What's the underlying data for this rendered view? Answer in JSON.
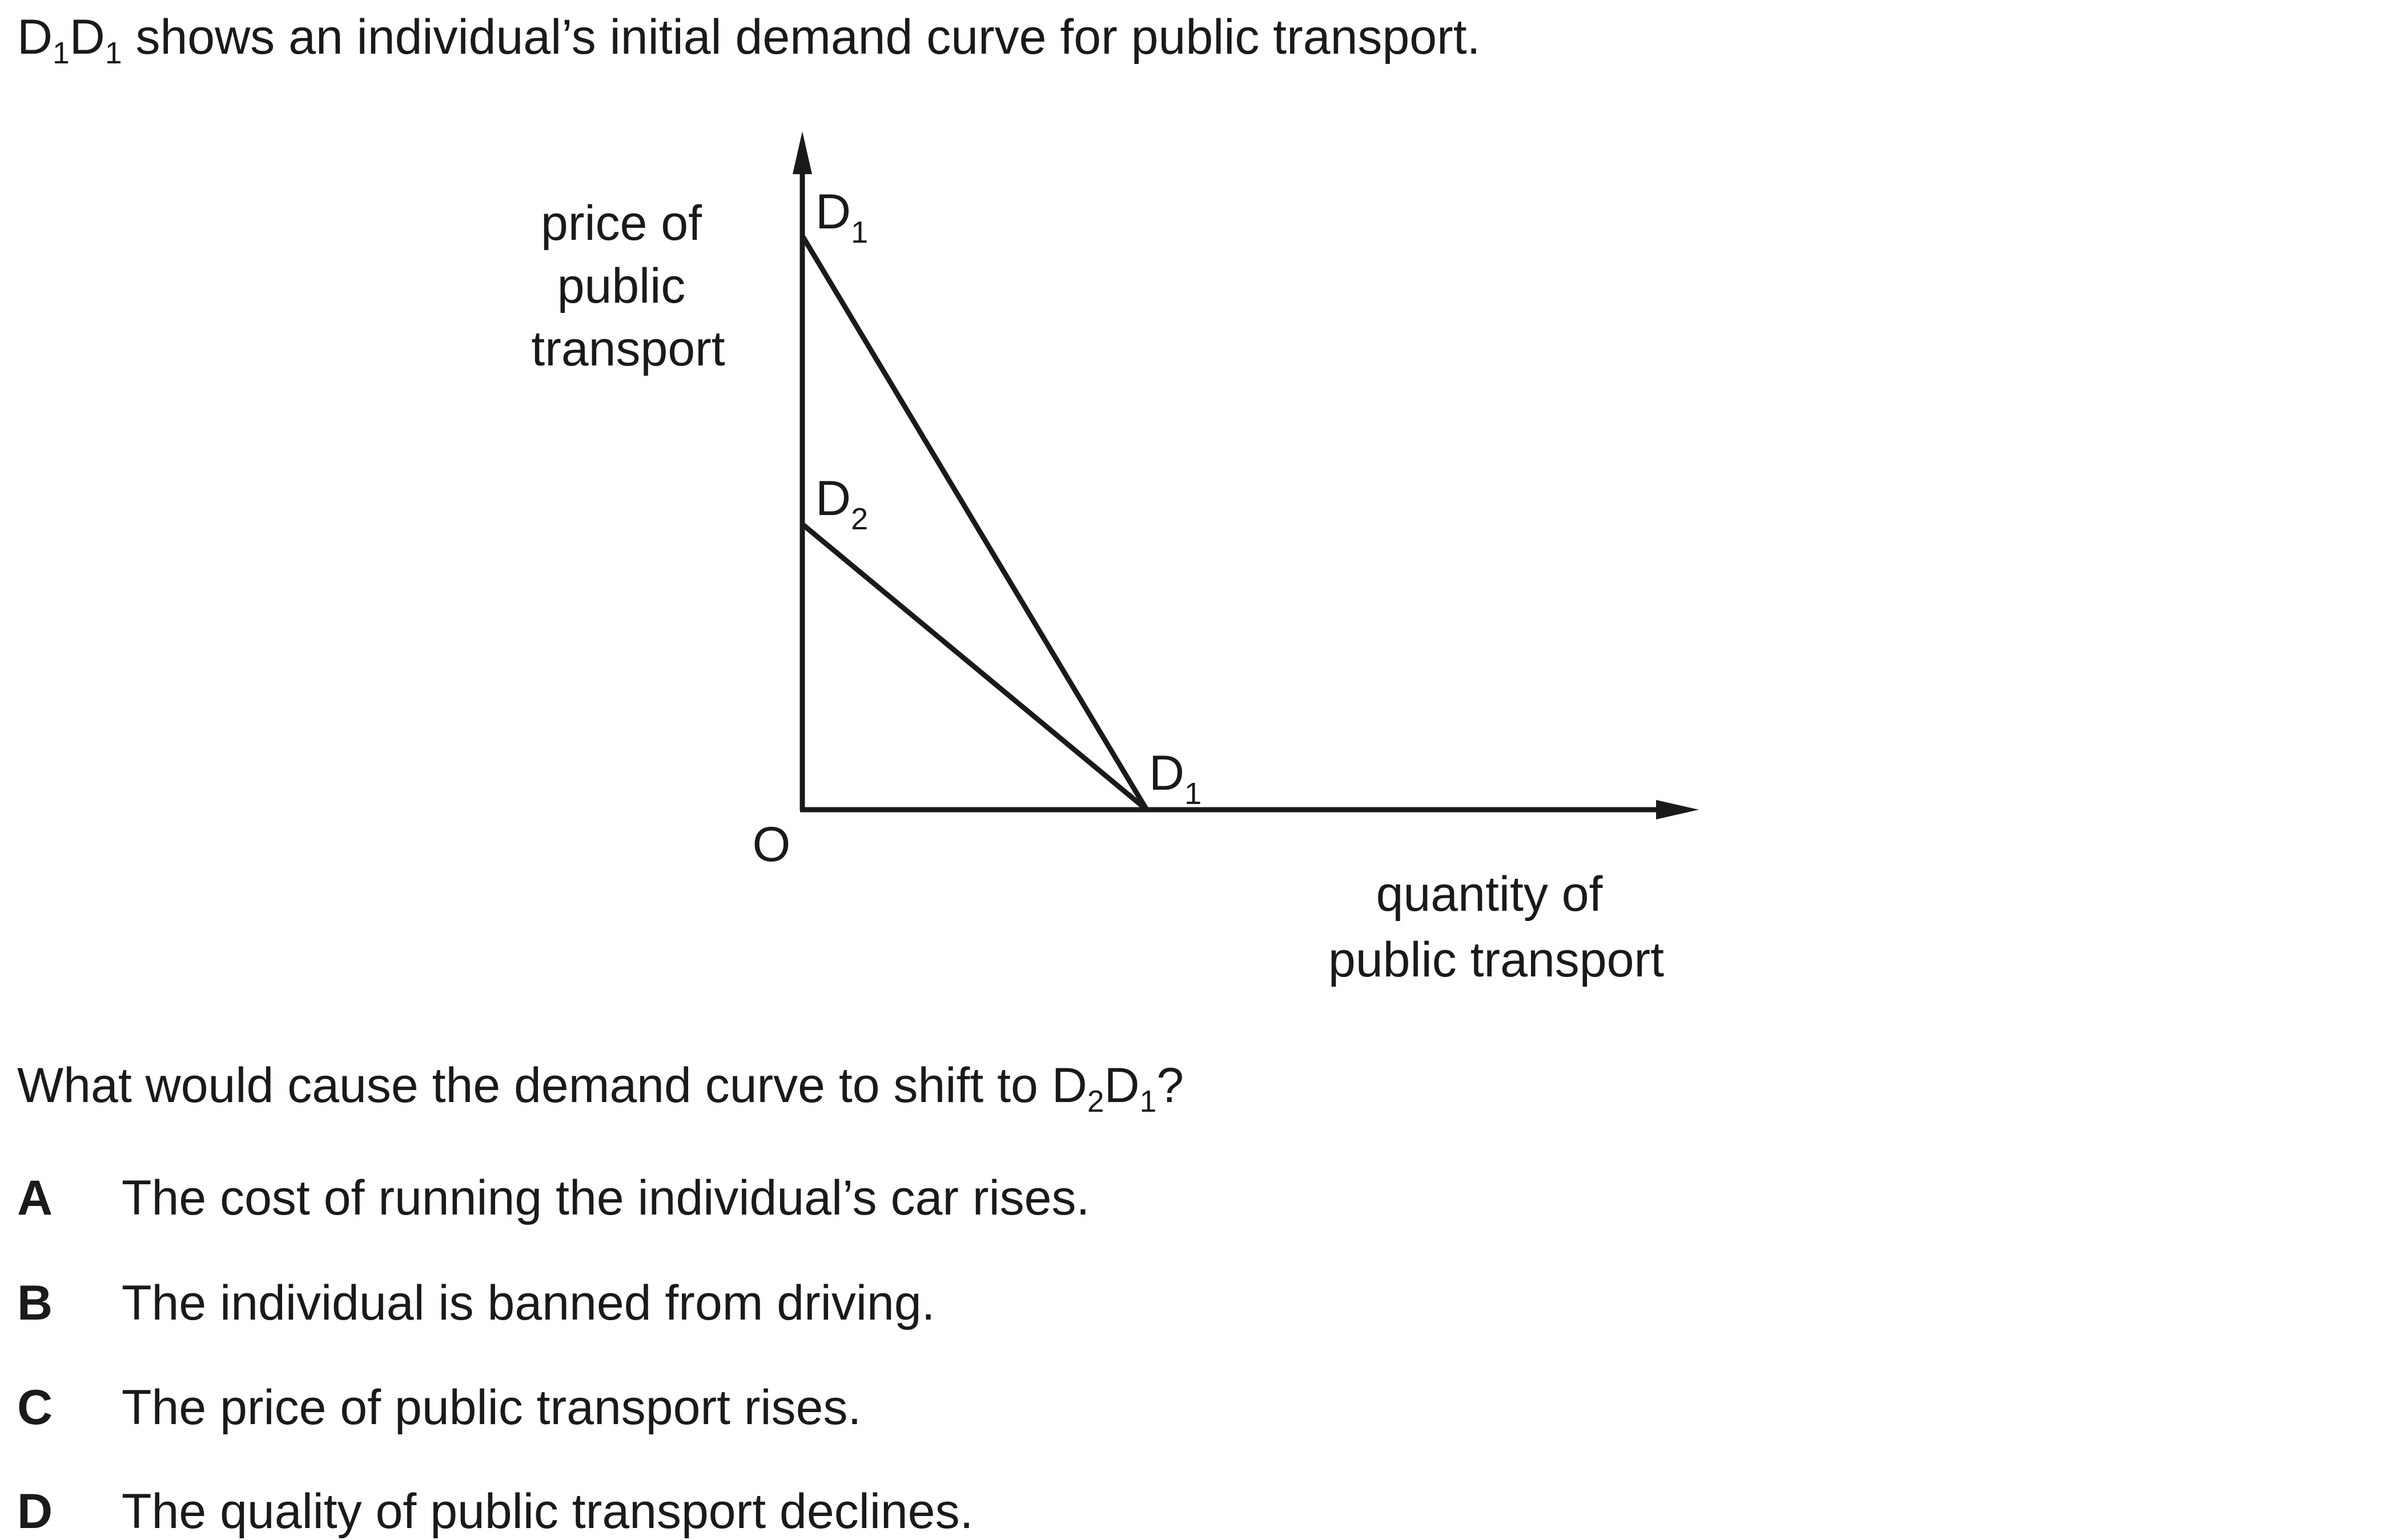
{
  "intro": {
    "curve_letter_a": "D",
    "curve_sub_a": "1",
    "curve_letter_b": "D",
    "curve_sub_b": "1",
    "text": "shows an individual’s initial demand curve for public transport."
  },
  "chart_data": {
    "type": "line",
    "ylabel_lines": [
      "price of",
      "public",
      "transport"
    ],
    "xlabel_lines": [
      "quantity of",
      "public transport"
    ],
    "origin_label": "O",
    "curves": [
      {
        "name": "D1D1",
        "start_label": {
          "letter": "D",
          "sub": "1"
        },
        "end_label": {
          "letter": "D",
          "sub": "1"
        }
      },
      {
        "name": "D2D1",
        "start_label": {
          "letter": "D",
          "sub": "2"
        }
      }
    ]
  },
  "prompt": {
    "text": "What would cause the demand curve to shift to",
    "curve_letter_a": "D",
    "curve_sub_a": "2",
    "curve_letter_b": "D",
    "curve_sub_b": "1",
    "end": "?"
  },
  "options": [
    {
      "letter": "A",
      "text": "The cost of running the individual’s car rises."
    },
    {
      "letter": "B",
      "text": "The individual is banned from driving."
    },
    {
      "letter": "C",
      "text": "The price of public transport rises."
    },
    {
      "letter": "D",
      "text": "The quality of public transport declines."
    }
  ]
}
